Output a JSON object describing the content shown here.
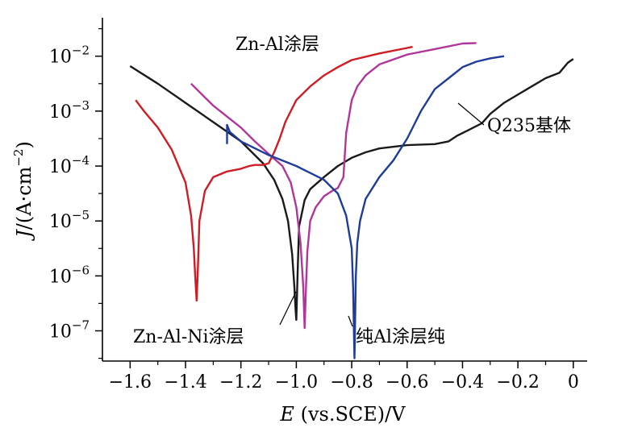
{
  "chart_data": {
    "type": "line",
    "xlabel_italic": "E",
    "xlabel_rest": " (vs.SCE)/V",
    "ylabel_italic": "J",
    "ylabel_base": "/(A·cm",
    "ylabel_exp": "−2",
    "ylabel_close": ")",
    "xlim": [
      -1.7,
      0.05
    ],
    "ylim_log10": [
      -7.55,
      -1.3
    ],
    "y_log_scale": true,
    "grid": false,
    "x_ticks": [
      {
        "v": -1.6,
        "label": "−1.6"
      },
      {
        "v": -1.4,
        "label": "−1.4"
      },
      {
        "v": -1.2,
        "label": "−1.2"
      },
      {
        "v": -1.0,
        "label": "−1.0"
      },
      {
        "v": -0.8,
        "label": "−0.8"
      },
      {
        "v": -0.6,
        "label": "−0.6"
      },
      {
        "v": -0.4,
        "label": "−0.4"
      },
      {
        "v": -0.2,
        "label": "−0.2"
      },
      {
        "v": 0,
        "label": "0"
      }
    ],
    "y_ticks": [
      {
        "exp": -2,
        "base": "10",
        "sup": "−2"
      },
      {
        "exp": -3,
        "base": "10",
        "sup": "−3"
      },
      {
        "exp": -4,
        "base": "10",
        "sup": "−4"
      },
      {
        "exp": -5,
        "base": "10",
        "sup": "−5"
      },
      {
        "exp": -6,
        "base": "10",
        "sup": "−6"
      },
      {
        "exp": -7,
        "base": "10",
        "sup": "−7"
      }
    ],
    "series": [
      {
        "name": "Q235基体",
        "color": "#1a1a1a",
        "x": [
          -1.6,
          -1.5,
          -1.4,
          -1.3,
          -1.2,
          -1.12,
          -1.08,
          -1.05,
          -1.03,
          -1.015,
          -1.007,
          -1.003,
          -1.0,
          -0.995,
          -0.99,
          -0.97,
          -0.95,
          -0.9,
          -0.85,
          -0.8,
          -0.75,
          -0.7,
          -0.6,
          -0.5,
          -0.45,
          -0.42,
          -0.38,
          -0.33,
          -0.3,
          -0.25,
          -0.2,
          -0.15,
          -0.1,
          -0.05,
          -0.02,
          0
        ],
        "log10y": [
          -2.18,
          -2.5,
          -2.85,
          -3.2,
          -3.55,
          -3.95,
          -4.25,
          -4.6,
          -5.0,
          -5.6,
          -6.2,
          -6.6,
          -6.8,
          -5.9,
          -5.1,
          -4.62,
          -4.42,
          -4.2,
          -4.0,
          -3.85,
          -3.75,
          -3.68,
          -3.62,
          -3.6,
          -3.55,
          -3.45,
          -3.35,
          -3.22,
          -3.05,
          -2.85,
          -2.7,
          -2.55,
          -2.4,
          -2.3,
          -2.12,
          -2.05
        ]
      },
      {
        "name": "Zn-Al涂层",
        "color": "#d01c24",
        "x": [
          -1.58,
          -1.55,
          -1.5,
          -1.45,
          -1.4,
          -1.38,
          -1.37,
          -1.365,
          -1.36,
          -1.355,
          -1.35,
          -1.33,
          -1.3,
          -1.25,
          -1.2,
          -1.17,
          -1.15,
          -1.12,
          -1.1,
          -1.08,
          -1.06,
          -1.04,
          -1.02,
          -1.0,
          -0.95,
          -0.9,
          -0.85,
          -0.8,
          -0.7,
          -0.6,
          -0.58
        ],
        "log10y": [
          -2.8,
          -3.0,
          -3.3,
          -3.7,
          -4.3,
          -4.9,
          -5.5,
          -6.0,
          -6.45,
          -5.8,
          -5.0,
          -4.45,
          -4.2,
          -4.1,
          -4.05,
          -4.0,
          -3.98,
          -3.98,
          -3.95,
          -3.75,
          -3.5,
          -3.2,
          -3.0,
          -2.8,
          -2.55,
          -2.35,
          -2.2,
          -2.07,
          -1.95,
          -1.85,
          -1.83
        ]
      },
      {
        "name": "Zn-Al-Ni涂层",
        "color": "#b0369b",
        "x": [
          -1.38,
          -1.3,
          -1.2,
          -1.15,
          -1.1,
          -1.05,
          -1.02,
          -1.0,
          -0.985,
          -0.975,
          -0.97,
          -0.965,
          -0.96,
          -0.95,
          -0.93,
          -0.9,
          -0.87,
          -0.85,
          -0.83,
          -0.82,
          -0.8,
          -0.78,
          -0.75,
          -0.7,
          -0.6,
          -0.5,
          -0.4,
          -0.35
        ],
        "log10y": [
          -2.5,
          -2.9,
          -3.3,
          -3.55,
          -3.78,
          -4.0,
          -4.3,
          -4.75,
          -5.4,
          -6.2,
          -6.95,
          -6.2,
          -5.55,
          -5.0,
          -4.75,
          -4.55,
          -4.45,
          -4.4,
          -4.2,
          -3.4,
          -2.8,
          -2.55,
          -2.35,
          -2.15,
          -1.97,
          -1.87,
          -1.77,
          -1.76
        ]
      },
      {
        "name": "纯Al涂层纯",
        "color": "#1f3c99",
        "x": [
          -1.25,
          -1.25,
          -1.24,
          -1.2,
          -1.1,
          -1.0,
          -0.9,
          -0.85,
          -0.82,
          -0.8,
          -0.795,
          -0.792,
          -0.79,
          -0.788,
          -0.785,
          -0.78,
          -0.77,
          -0.75,
          -0.7,
          -0.65,
          -0.6,
          -0.55,
          -0.5,
          -0.45,
          -0.4,
          -0.35,
          -0.3,
          -0.25
        ],
        "log10y": [
          -3.6,
          -3.25,
          -3.38,
          -3.55,
          -3.8,
          -4.0,
          -4.25,
          -4.5,
          -4.9,
          -5.5,
          -6.2,
          -7.0,
          -7.5,
          -6.9,
          -6.0,
          -5.4,
          -5.0,
          -4.6,
          -4.2,
          -3.9,
          -3.5,
          -3.0,
          -2.6,
          -2.4,
          -2.2,
          -2.1,
          -2.04,
          -2.0
        ]
      }
    ],
    "annotations": [
      {
        "text": "Zn-Al涂层",
        "series": 1
      },
      {
        "text": "Q235基体",
        "series": 0
      },
      {
        "text": "Zn-Al-Ni涂层",
        "series": 2
      },
      {
        "text": "纯Al涂层纯",
        "series": 3
      }
    ]
  }
}
